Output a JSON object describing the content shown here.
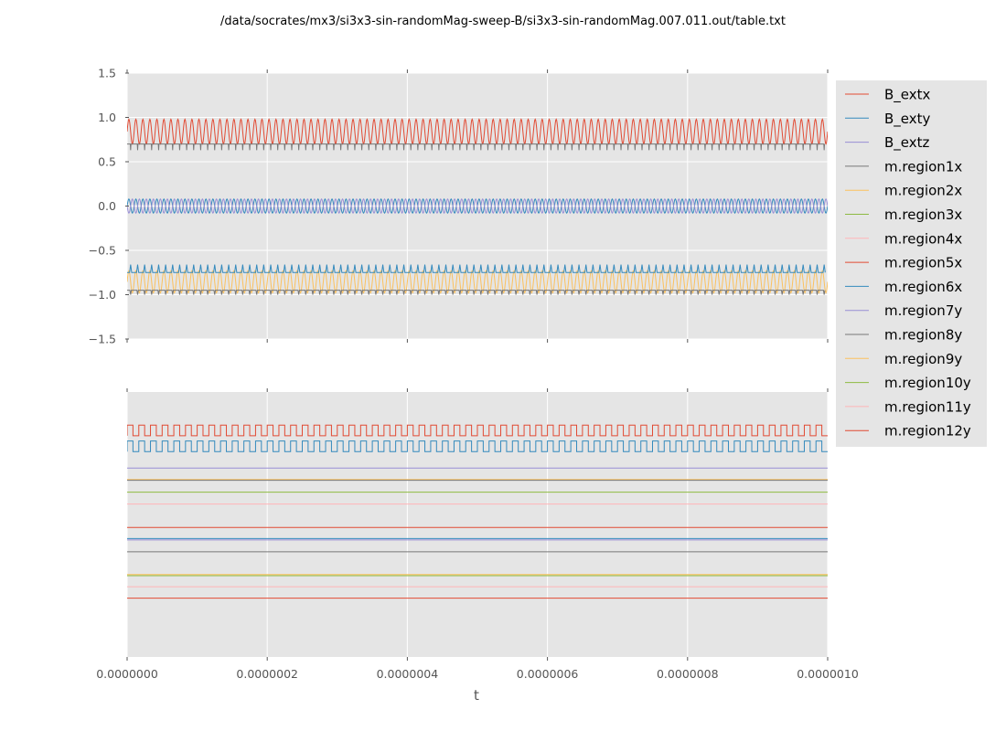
{
  "chart_data": {
    "type": "line",
    "title": "/data/socrates/mx3/si3x3-sin-randomMag-sweep-B/si3x3-sin-randomMag.007.011.out/table.txt",
    "xlabel": "t",
    "xlim": [
      0,
      1e-06
    ],
    "x_ticks": [
      "0.0000000",
      "0.0000002",
      "0.0000004",
      "0.0000006",
      "0.0000008",
      "0.0000010"
    ],
    "grid": true,
    "legend_position": "right",
    "colors": [
      "#E24A33",
      "#348ABD",
      "#988ED5",
      "#777777",
      "#FBC15E",
      "#8EBA42",
      "#FFB5B8"
    ],
    "panels": [
      {
        "name": "top",
        "ylim": [
          -1.5,
          1.5
        ],
        "y_ticks": [
          "1.5",
          "1.0",
          "0.5",
          "0.0",
          "−0.5",
          "−1.0",
          "−1.5"
        ],
        "y_tick_values": [
          1.5,
          1.0,
          0.5,
          0.0,
          -0.5,
          -1.0,
          -1.5
        ],
        "series": [
          {
            "name": "B_extx",
            "kind": "oscillation",
            "cycles": 100,
            "min": 0.7,
            "max": 0.98,
            "color": "#E24A33"
          },
          {
            "name": "B_exty",
            "kind": "oscillation",
            "cycles": 100,
            "min": -0.08,
            "max": 0.08,
            "color": "#348ABD"
          },
          {
            "name": "B_extz",
            "kind": "oscillation",
            "cycles": 100,
            "min": -0.08,
            "max": 0.08,
            "color": "#988ED5",
            "phase": 0.5
          },
          {
            "name": "m.region1x",
            "kind": "spikes",
            "cycles": 100,
            "min": 0.63,
            "max": 0.7,
            "color": "#777777"
          },
          {
            "name": "m.region2x",
            "kind": "oscillation",
            "cycles": 100,
            "min": -0.98,
            "max": -0.73,
            "color": "#FBC15E"
          },
          {
            "name": "m.region6x",
            "kind": "spikes_up",
            "cycles": 100,
            "min": -0.75,
            "max": -0.66,
            "color": "#348ABD"
          },
          {
            "name": "m.region8y",
            "kind": "spikes_down",
            "cycles": 100,
            "min": -1.0,
            "max": -0.95,
            "color": "#777777"
          }
        ]
      },
      {
        "name": "bottom",
        "series": [
          {
            "name": "m.region5x",
            "kind": "square",
            "cycles": 60,
            "frac_lo": 0.165,
            "frac_hi": 0.125,
            "color": "#E24A33"
          },
          {
            "name": "m.region6x",
            "kind": "square",
            "cycles": 60,
            "frac_lo": 0.225,
            "frac_hi": 0.185,
            "color": "#348ABD"
          },
          {
            "name": "m.region7y",
            "kind": "flat",
            "frac": 0.287,
            "color": "#988ED5"
          },
          {
            "name": "m.region9y",
            "kind": "flat",
            "frac": 0.33,
            "color": "#FBC15E"
          },
          {
            "name": "m.region1x",
            "kind": "flat",
            "frac": 0.333,
            "color": "#777777"
          },
          {
            "name": "m.region10y",
            "kind": "flat",
            "frac": 0.378,
            "color": "#8EBA42"
          },
          {
            "name": "m.region11y",
            "kind": "flat",
            "frac": 0.423,
            "color": "#FFB5B8"
          },
          {
            "name": "m.region12y",
            "kind": "flat",
            "frac": 0.511,
            "color": "#E24A33"
          },
          {
            "name": "m.region3x",
            "kind": "flat",
            "frac": 0.553,
            "color": "#348ABD"
          },
          {
            "name": "B_extz",
            "kind": "flat",
            "frac": 0.558,
            "color": "#988ED5"
          },
          {
            "name": "m.region8y",
            "kind": "flat",
            "frac": 0.603,
            "color": "#777777"
          },
          {
            "name": "m.region2x",
            "kind": "flat",
            "frac": 0.689,
            "color": "#FBC15E"
          },
          {
            "name": "m.region3x",
            "kind": "flat",
            "frac": 0.693,
            "color": "#8EBA42"
          },
          {
            "name": "m.region4x",
            "kind": "flat",
            "frac": 0.735,
            "color": "#FFB5B8"
          },
          {
            "name": "m.region5x",
            "kind": "flat",
            "frac": 0.778,
            "color": "#E24A33"
          }
        ]
      }
    ],
    "legend": [
      {
        "name": "B_extx",
        "color": "#E24A33"
      },
      {
        "name": "B_exty",
        "color": "#348ABD"
      },
      {
        "name": "B_extz",
        "color": "#988ED5"
      },
      {
        "name": "m.region1x",
        "color": "#777777"
      },
      {
        "name": "m.region2x",
        "color": "#FBC15E"
      },
      {
        "name": "m.region3x",
        "color": "#8EBA42"
      },
      {
        "name": "m.region4x",
        "color": "#FFB5B8"
      },
      {
        "name": "m.region5x",
        "color": "#E24A33"
      },
      {
        "name": "m.region6x",
        "color": "#348ABD"
      },
      {
        "name": "m.region7y",
        "color": "#988ED5"
      },
      {
        "name": "m.region8y",
        "color": "#777777"
      },
      {
        "name": "m.region9y",
        "color": "#FBC15E"
      },
      {
        "name": "m.region10y",
        "color": "#8EBA42"
      },
      {
        "name": "m.region11y",
        "color": "#FFB5B8"
      },
      {
        "name": "m.region12y",
        "color": "#E24A33"
      }
    ]
  }
}
